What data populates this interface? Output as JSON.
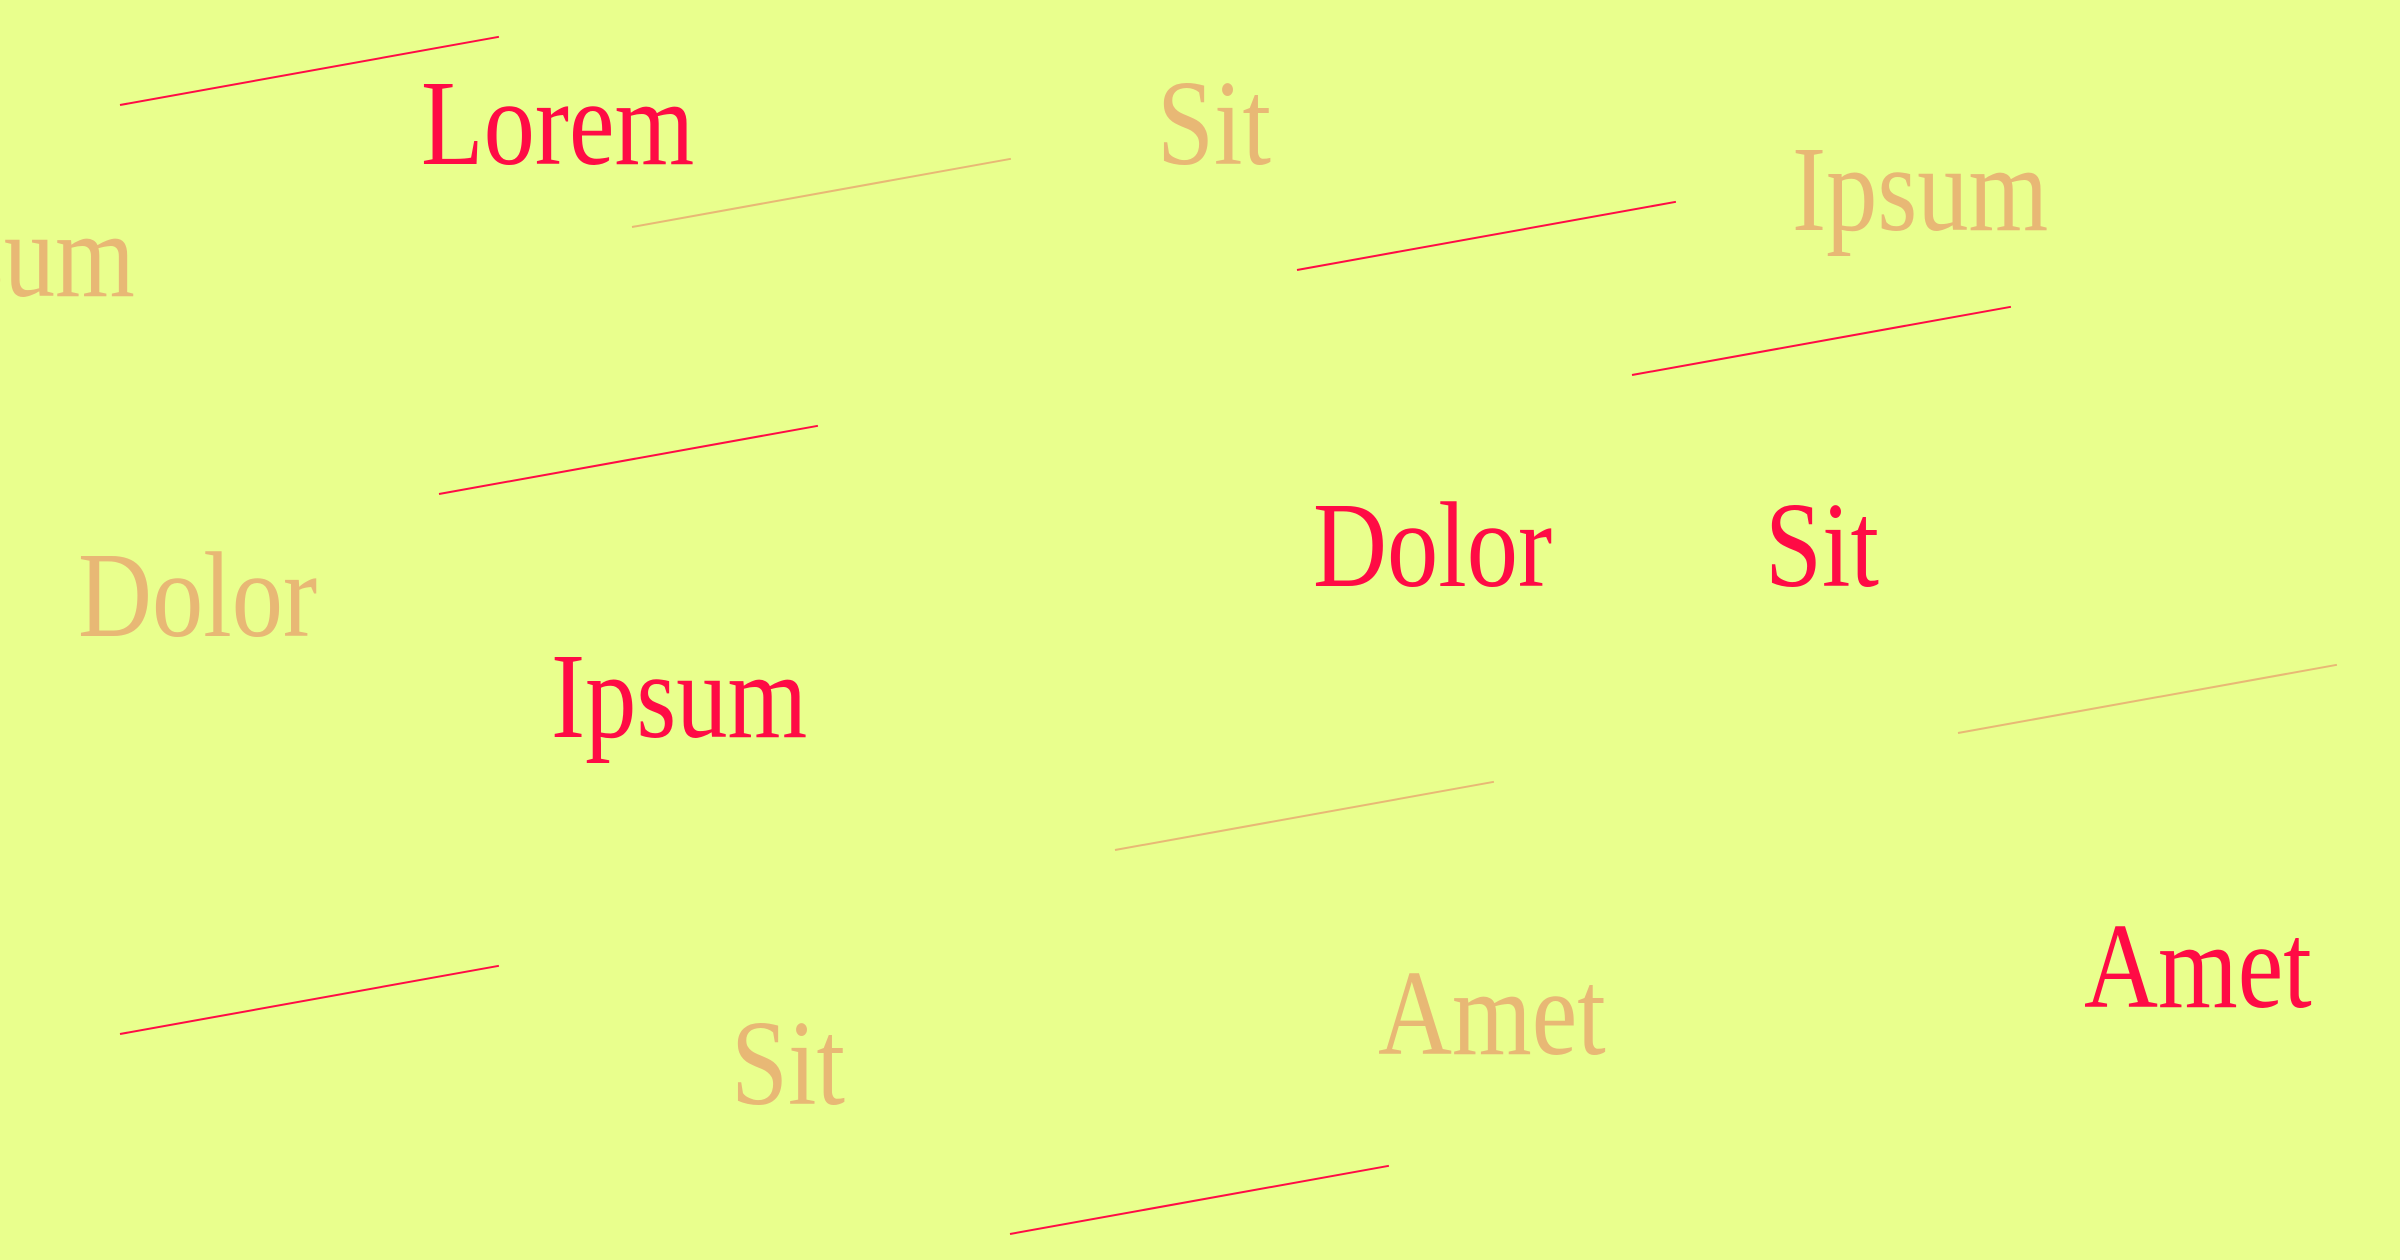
{
  "canvas": {
    "background_color": "#e9ff8d",
    "primary_color": "#ff0b45",
    "muted_color": "#e8b875"
  },
  "words": {
    "lorem": "Lorem",
    "sit_top": "Sit",
    "ipsum_right": "Ipsum",
    "sum_left": "sum",
    "dolor_muted": "Dolor",
    "dolor_primary": "Dolor",
    "sit_primary": "Sit",
    "ipsum_primary": "Ipsum",
    "sit_bottom": "Sit",
    "amet_muted": "Amet",
    "amet_primary": "Amet"
  }
}
